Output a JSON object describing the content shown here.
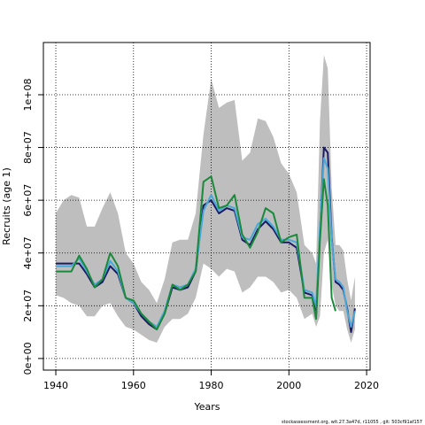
{
  "chart_data": {
    "type": "line",
    "x_label": "Years",
    "y_label": "Recruits (age 1)",
    "footnote": "stockassessment.org, wit.27.3a47d, r11055 , git: 503cf91af157",
    "grid": true,
    "xlim": [
      1936.8,
      2020.9
    ],
    "ylim": [
      -4400000,
      119800000
    ],
    "xticks": [
      1940,
      1960,
      1980,
      2000,
      2020
    ],
    "yticks": [
      {
        "value": 0,
        "label": "0e+00"
      },
      {
        "value": 20000000,
        "label": "2e+07"
      },
      {
        "value": 40000000,
        "label": "4e+07"
      },
      {
        "value": 60000000,
        "label": "6e+07"
      },
      {
        "value": 80000000,
        "label": "8e+07"
      },
      {
        "value": 100000000,
        "label": "1e+08"
      }
    ],
    "x": [
      1940,
      1942,
      1944,
      1946,
      1948,
      1950,
      1952,
      1954,
      1956,
      1958,
      1960,
      1962,
      1964,
      1966,
      1968,
      1970,
      1972,
      1974,
      1976,
      1978,
      1980,
      1982,
      1984,
      1986,
      1988,
      1990,
      1992,
      1994,
      1996,
      1998,
      2000,
      2002,
      2004,
      2006,
      2007,
      2008,
      2009,
      2010,
      2011,
      2012,
      2013,
      2014,
      2015,
      2016,
      2017
    ],
    "band": {
      "color": "#bebebe",
      "upper": [
        55000000,
        60000000,
        62000000,
        61000000,
        50000000,
        50000000,
        57000000,
        63000000,
        55000000,
        40000000,
        36000000,
        29000000,
        26000000,
        21000000,
        30000000,
        44000000,
        45000000,
        45000000,
        55000000,
        85000000,
        106000000,
        95000000,
        97000000,
        98000000,
        75000000,
        78000000,
        91000000,
        90000000,
        84000000,
        74000000,
        70000000,
        63000000,
        43000000,
        40000000,
        36000000,
        90000000,
        115000000,
        110000000,
        65000000,
        43000000,
        43000000,
        41000000,
        30000000,
        22000000,
        31000000
      ],
      "lower": [
        24000000,
        23000000,
        21000000,
        20000000,
        16000000,
        16000000,
        20000000,
        21000000,
        16000000,
        12000000,
        11000000,
        9000000,
        7000000,
        6000000,
        12000000,
        15000000,
        15000000,
        17000000,
        23000000,
        36000000,
        34000000,
        31000000,
        34000000,
        33000000,
        25000000,
        27000000,
        31000000,
        31000000,
        29000000,
        25000000,
        26000000,
        23000000,
        15000000,
        17000000,
        12000000,
        16000000,
        40000000,
        45000000,
        28000000,
        20000000,
        18000000,
        18000000,
        11000000,
        6000000,
        11000000
      ]
    },
    "series": [
      {
        "color": "#1a1a66",
        "values": [
          36000000,
          36000000,
          36000000,
          36000000,
          32000000,
          27000000,
          29000000,
          35000000,
          32000000,
          23000000,
          21000000,
          16000000,
          13000000,
          11000000,
          17000000,
          27000000,
          26000000,
          27000000,
          33000000,
          58000000,
          60000000,
          55000000,
          57000000,
          56000000,
          45000000,
          43000000,
          49000000,
          52000000,
          49000000,
          44000000,
          44000000,
          42000000,
          25000000,
          24000000,
          16000000,
          48000000,
          80000000,
          78000000,
          46000000,
          29000000,
          28000000,
          26000000,
          19000000,
          10000000,
          19000000
        ]
      },
      {
        "color": "#4aa8d8",
        "values": [
          35000000,
          35000000,
          35000000,
          38000000,
          33000000,
          28000000,
          30000000,
          37000000,
          33000000,
          23000000,
          21000000,
          17000000,
          14000000,
          12000000,
          18000000,
          28000000,
          27000000,
          28000000,
          34000000,
          56000000,
          62000000,
          56000000,
          58000000,
          57000000,
          46000000,
          45000000,
          51000000,
          53000000,
          50000000,
          45000000,
          45000000,
          44000000,
          26000000,
          25000000,
          20000000,
          50000000,
          76000000,
          72000000,
          45000000,
          30000000,
          29000000,
          27000000,
          18000000,
          12000000,
          18000000
        ]
      },
      {
        "color": "#1a8a3a",
        "values": [
          33000000,
          33000000,
          33000000,
          39000000,
          34000000,
          27000000,
          30000000,
          40000000,
          35000000,
          23000000,
          22000000,
          17000000,
          14000000,
          11000000,
          17000000,
          28000000,
          26000000,
          28000000,
          33000000,
          67000000,
          69000000,
          57000000,
          58000000,
          62000000,
          47000000,
          42000000,
          48000000,
          57000000,
          55000000,
          44000000,
          46000000,
          47000000,
          23000000,
          23000000,
          15000000,
          45000000,
          68000000,
          58000000,
          23000000,
          18000000,
          null,
          null,
          null,
          null,
          null
        ]
      }
    ]
  }
}
